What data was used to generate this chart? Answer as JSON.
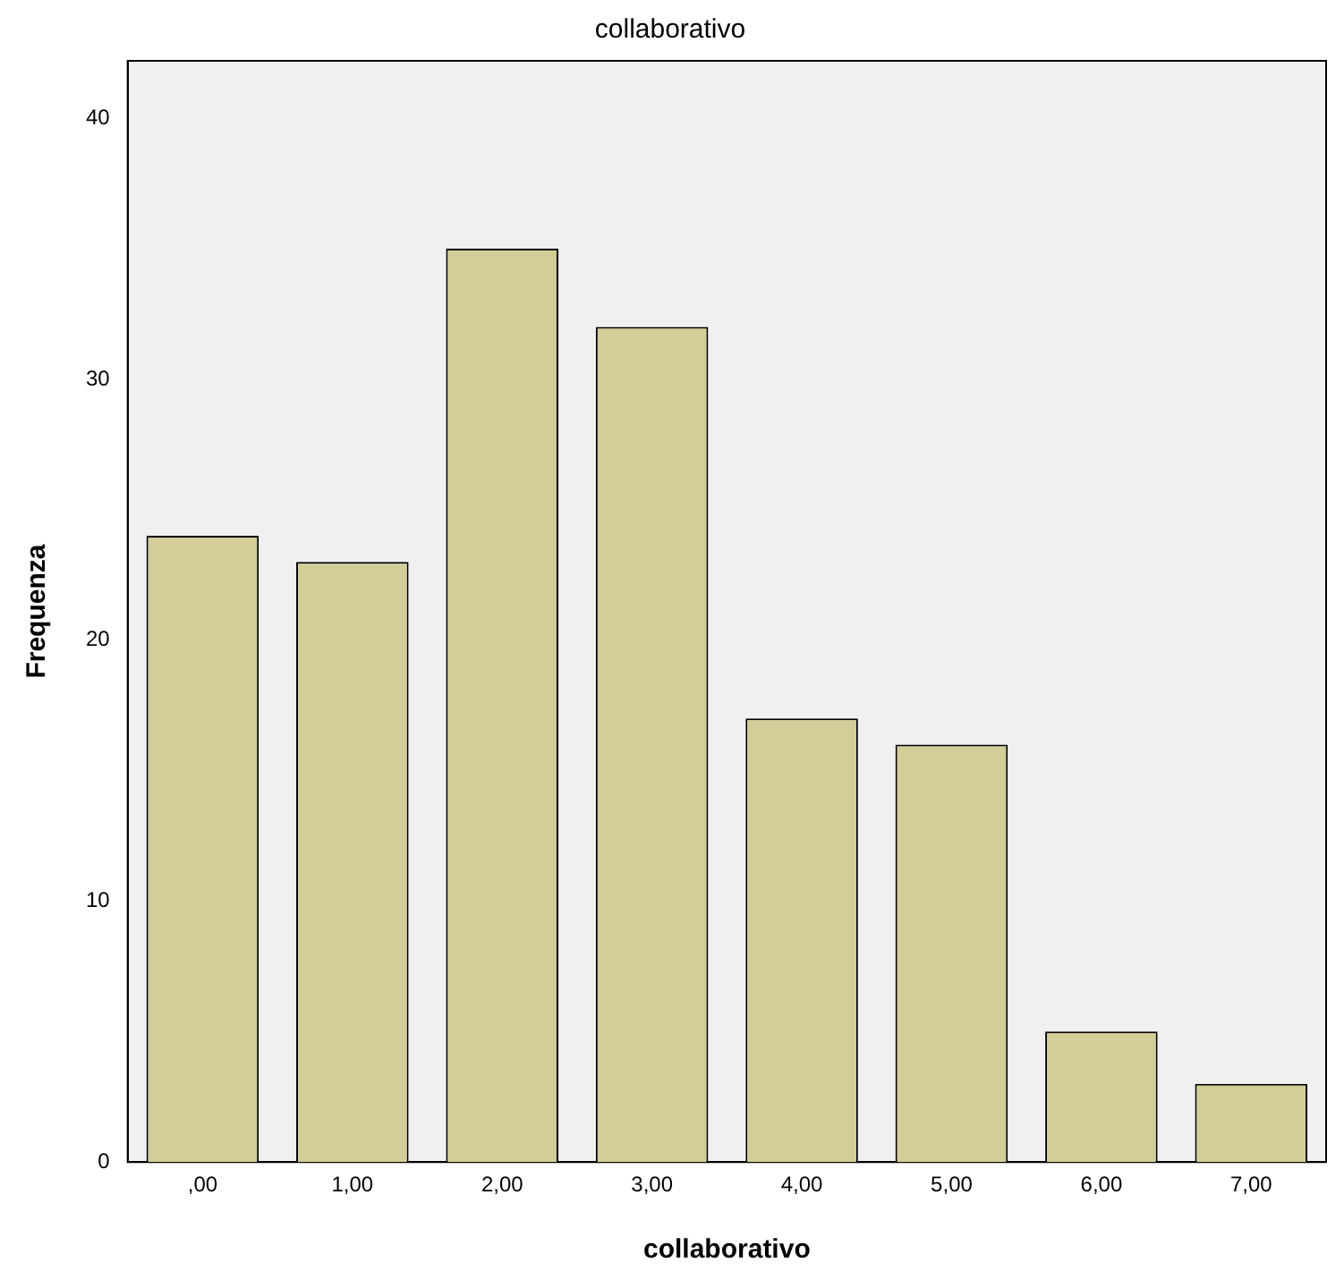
{
  "chart_data": {
    "type": "bar",
    "title": "collaborativo",
    "xlabel": "collaborativo",
    "ylabel": "Frequenza",
    "categories": [
      ",00",
      "1,00",
      "2,00",
      "3,00",
      "4,00",
      "5,00",
      "6,00",
      "7,00"
    ],
    "values": [
      24,
      23,
      35,
      32,
      17,
      16,
      5,
      3
    ],
    "color": "#d3cd98",
    "ylim": [
      0,
      42.2
    ],
    "yticks": [
      0,
      10,
      20,
      30,
      40
    ],
    "grid": false,
    "legend": false
  }
}
